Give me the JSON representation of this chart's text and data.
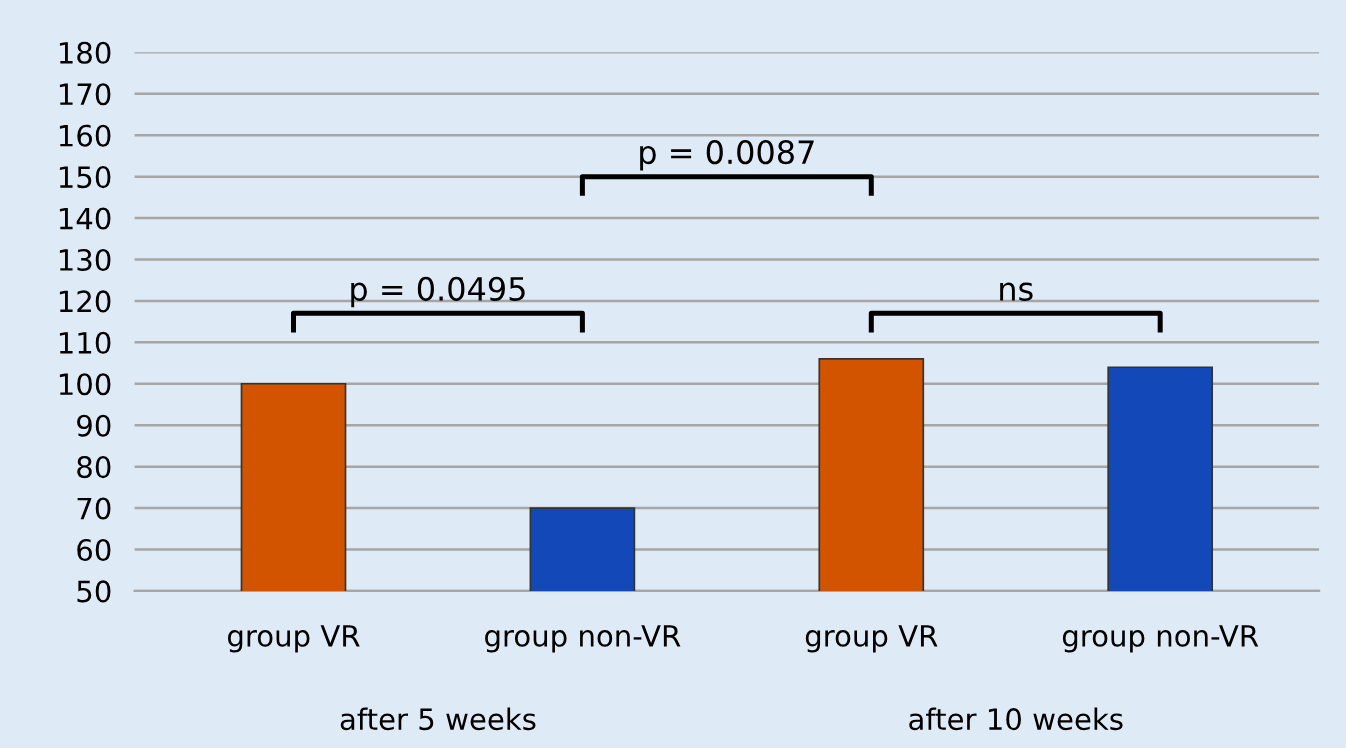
{
  "chart_data": {
    "type": "bar",
    "categories": [
      "group VR",
      "group non-VR",
      "group VR",
      "group non-VR"
    ],
    "values": [
      100,
      70,
      106,
      104
    ],
    "colors": [
      "#d35400",
      "#1348b8",
      "#d35400",
      "#1348b8"
    ],
    "ylim": [
      50,
      180
    ],
    "yticks": [
      50,
      60,
      70,
      80,
      90,
      100,
      110,
      120,
      130,
      140,
      150,
      160,
      170,
      180
    ],
    "grid": "y",
    "annotations": [
      "p = 0.0495",
      "p = 0.0087",
      "ns",
      "after 5 weeks",
      "after 10 weeks"
    ]
  }
}
